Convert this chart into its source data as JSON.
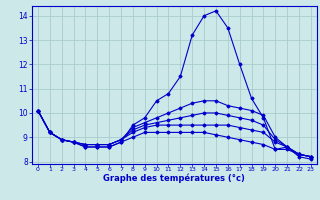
{
  "xlabel": "Graphe des températures (°c)",
  "background_color": "#cce8e8",
  "grid_color": "#aacccc",
  "line_color": "#0000cc",
  "hours": [
    0,
    1,
    2,
    3,
    4,
    5,
    6,
    7,
    8,
    9,
    10,
    11,
    12,
    13,
    14,
    15,
    16,
    17,
    18,
    19,
    20,
    21,
    22,
    23
  ],
  "curve1": [
    10.1,
    9.2,
    8.9,
    8.8,
    8.6,
    8.6,
    8.6,
    8.8,
    9.5,
    9.8,
    10.5,
    10.8,
    11.5,
    13.2,
    14.0,
    14.2,
    13.5,
    12.0,
    10.6,
    9.8,
    8.5,
    8.6,
    8.2,
    8.1
  ],
  "curve2": [
    10.1,
    9.2,
    8.9,
    8.8,
    8.7,
    8.7,
    8.7,
    8.9,
    9.4,
    9.6,
    9.8,
    10.0,
    10.2,
    10.4,
    10.5,
    10.5,
    10.3,
    10.2,
    10.1,
    9.9,
    9.0,
    8.6,
    8.3,
    8.2
  ],
  "curve3": [
    10.1,
    9.2,
    8.9,
    8.8,
    8.7,
    8.7,
    8.7,
    8.9,
    9.3,
    9.5,
    9.6,
    9.7,
    9.8,
    9.9,
    10.0,
    10.0,
    9.9,
    9.8,
    9.7,
    9.5,
    8.9,
    8.6,
    8.3,
    8.2
  ],
  "curve4": [
    10.1,
    9.2,
    8.9,
    8.8,
    8.7,
    8.7,
    8.7,
    8.9,
    9.2,
    9.4,
    9.5,
    9.5,
    9.5,
    9.5,
    9.5,
    9.5,
    9.5,
    9.4,
    9.3,
    9.2,
    8.8,
    8.6,
    8.3,
    8.2
  ],
  "curve5": [
    10.1,
    9.2,
    8.9,
    8.8,
    8.6,
    8.6,
    8.6,
    8.8,
    9.0,
    9.2,
    9.2,
    9.2,
    9.2,
    9.2,
    9.2,
    9.1,
    9.0,
    8.9,
    8.8,
    8.7,
    8.5,
    8.5,
    8.3,
    8.2
  ],
  "ylim": [
    7.9,
    14.4
  ],
  "yticks": [
    8,
    9,
    10,
    11,
    12,
    13,
    14
  ],
  "xticks": [
    0,
    1,
    2,
    3,
    4,
    5,
    6,
    7,
    8,
    9,
    10,
    11,
    12,
    13,
    14,
    15,
    16,
    17,
    18,
    19,
    20,
    21,
    22,
    23
  ]
}
